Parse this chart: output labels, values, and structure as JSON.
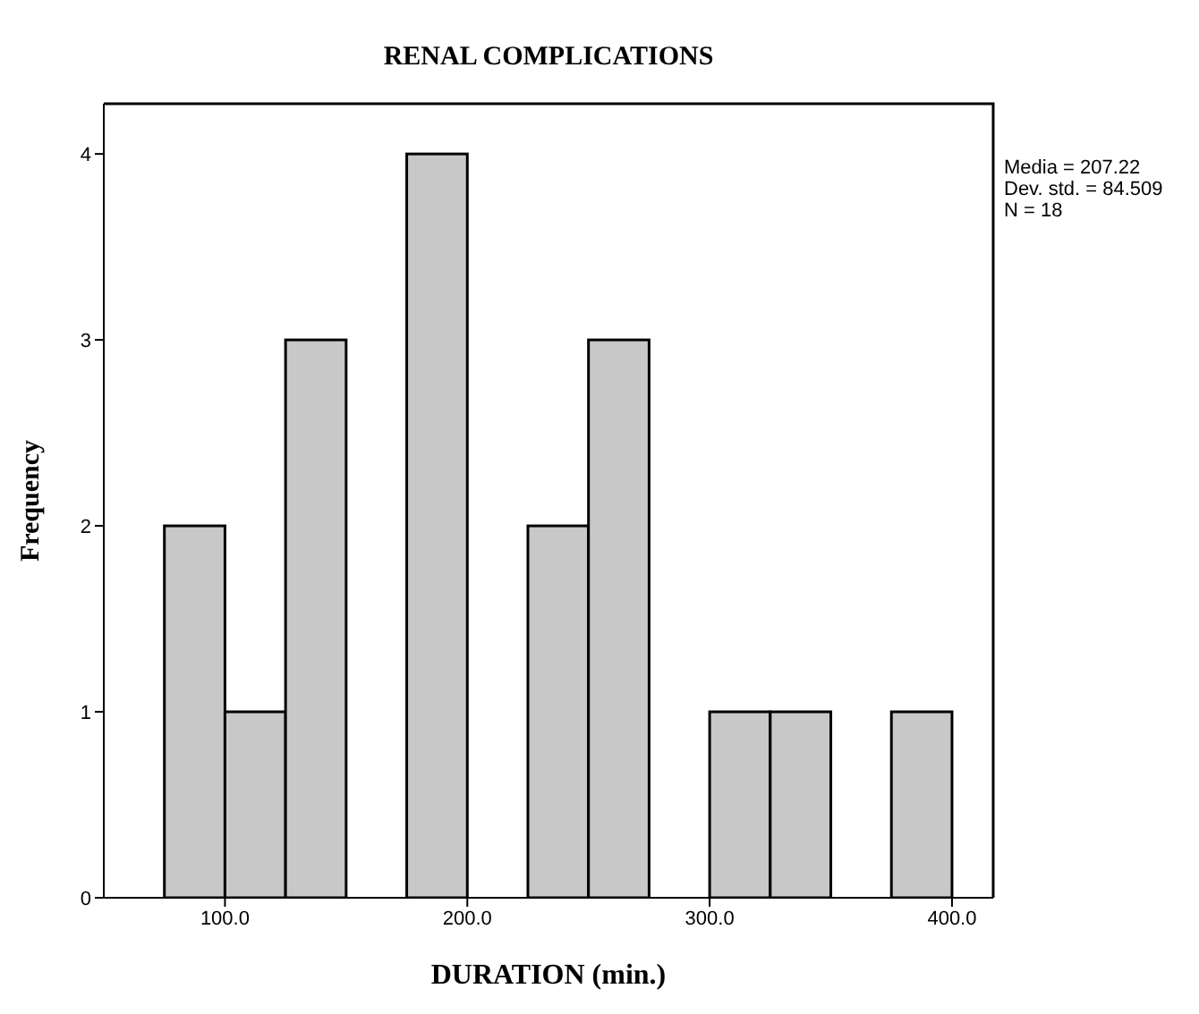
{
  "chart_data": {
    "type": "histogram",
    "title": "RENAL COMPLICATIONS",
    "xlabel": "DURATION (min.)",
    "ylabel": "Frequency",
    "bins": [
      75,
      100,
      125,
      150,
      175,
      200,
      225,
      250,
      275,
      300,
      325,
      350,
      375,
      400
    ],
    "values": [
      2,
      1,
      3,
      0,
      4,
      0,
      2,
      3,
      0,
      1,
      1,
      0,
      1
    ],
    "color": "#c8c8c8",
    "xlim": [
      50,
      417
    ],
    "xticks": [
      {
        "value": 100,
        "label": "100.0"
      },
      {
        "value": 200,
        "label": "200.0"
      },
      {
        "value": 300,
        "label": "300.0"
      },
      {
        "value": 400,
        "label": "400.0"
      }
    ],
    "ylim": [
      0,
      4.27
    ],
    "yticks": [
      0,
      1,
      2,
      3,
      4
    ],
    "grid": false,
    "annotations": [
      "Media = 207.22",
      "Dev. std. = 84.509",
      "N = 18"
    ]
  }
}
